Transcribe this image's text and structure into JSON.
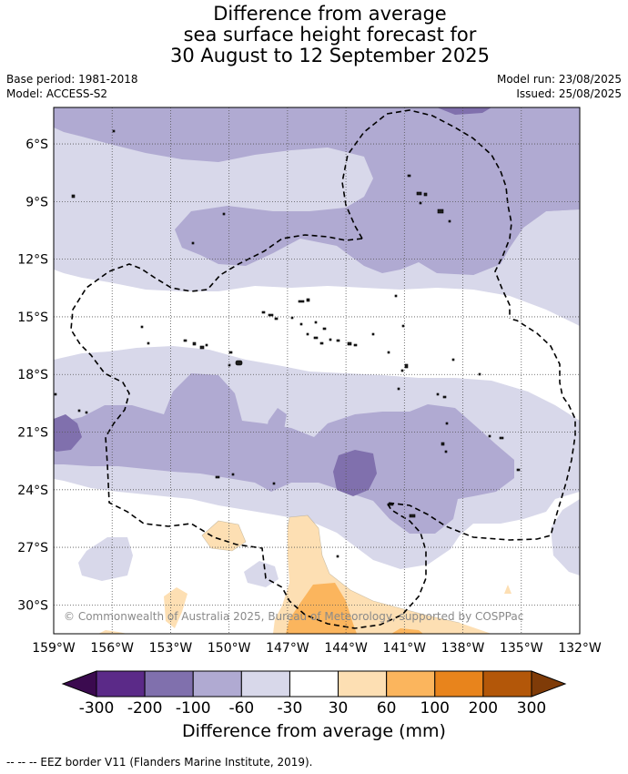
{
  "title_lines": [
    "Difference from average",
    "sea surface height forecast for",
    "30 August to 12 September 2025"
  ],
  "base_period": "Base period: 1981-2018",
  "model": "Model: ACCESS-S2",
  "model_run": "Model run: 23/08/2025",
  "issued": "Issued: 25/08/2025",
  "copyright": "© Commonwealth of Australia 2025, Bureau of Meteorology, supported by COSPPac",
  "footer": "--  --  -- EEZ border V11 (Flanders Marine Institute, 2019).",
  "colors": {
    "lt300": "#3b0a4f",
    "m300": "#5b2a88",
    "m200": "#8070ad",
    "m100": "#b0aad2",
    "m60": "#d8d8ea",
    "neutral": "#ffffff",
    "p30": "#fddfb3",
    "p60": "#fbb55d",
    "p100": "#e8841c",
    "p200": "#b35709",
    "gt300": "#7f3b08"
  },
  "map": {
    "lon_ticks": [
      "159°W",
      "156°W",
      "153°W",
      "150°W",
      "147°W",
      "144°W",
      "141°W",
      "138°W",
      "135°W",
      "132°W"
    ],
    "lat_ticks": [
      "6°S",
      "9°S",
      "12°S",
      "15°S",
      "18°S",
      "21°S",
      "24°S",
      "27°S",
      "30°S"
    ],
    "lon_values": [
      -159,
      -156,
      -153,
      -150,
      -147,
      -144,
      -141,
      -138,
      -135,
      -132
    ],
    "lat_values": [
      -6,
      -9,
      -12,
      -15,
      -18,
      -21,
      -24,
      -27,
      -30
    ],
    "lon_range": [
      -159,
      -132
    ],
    "lat_range": [
      -31.5,
      -4.1
    ]
  },
  "colorbar": {
    "title": "Difference from average (mm)",
    "labels": [
      "-300",
      "-200",
      "-100",
      "-60",
      "-30",
      "30",
      "60",
      "100",
      "200",
      "300"
    ]
  }
}
